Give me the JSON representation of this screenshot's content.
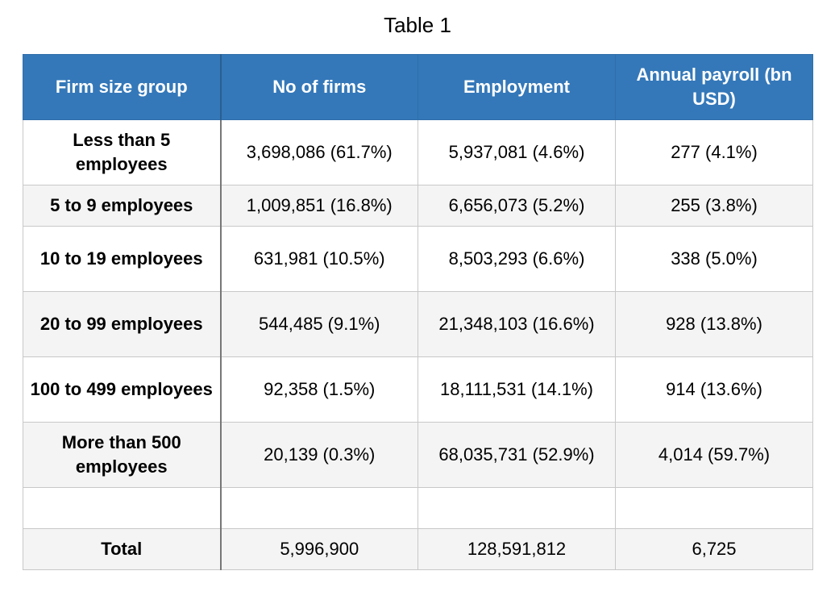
{
  "caption": "Table 1",
  "colors": {
    "header_bg": "#3478b9",
    "header_text": "#ffffff",
    "stripe_bg": "#f4f4f4",
    "grid_line": "#c8c8c8"
  },
  "table": {
    "headers": [
      "Firm size group",
      "No of firms",
      "Employment",
      "Annual payroll (bn USD)"
    ],
    "rows": [
      [
        "Less than 5 employees",
        "3,698,086 (61.7%)",
        "5,937,081 (4.6%)",
        "277 (4.1%)"
      ],
      [
        "5 to 9 employees",
        "1,009,851 (16.8%)",
        "6,656,073 (5.2%)",
        "255 (3.8%)"
      ],
      [
        "10 to 19 employees",
        "631,981 (10.5%)",
        "8,503,293 (6.6%)",
        "338 (5.0%)"
      ],
      [
        "20 to 99 employees",
        "544,485 (9.1%)",
        "21,348,103 (16.6%)",
        "928 (13.8%)"
      ],
      [
        "100 to 499 employees",
        "92,358 (1.5%)",
        "18,111,531 (14.1%)",
        "914 (13.6%)"
      ],
      [
        "More than 500 employees",
        "20,139 (0.3%)",
        "68,035,731 (52.9%)",
        "4,014 (59.7%)"
      ],
      [
        "",
        "",
        "",
        ""
      ],
      [
        "Total",
        "5,996,900",
        "128,591,812",
        "6,725"
      ]
    ]
  }
}
